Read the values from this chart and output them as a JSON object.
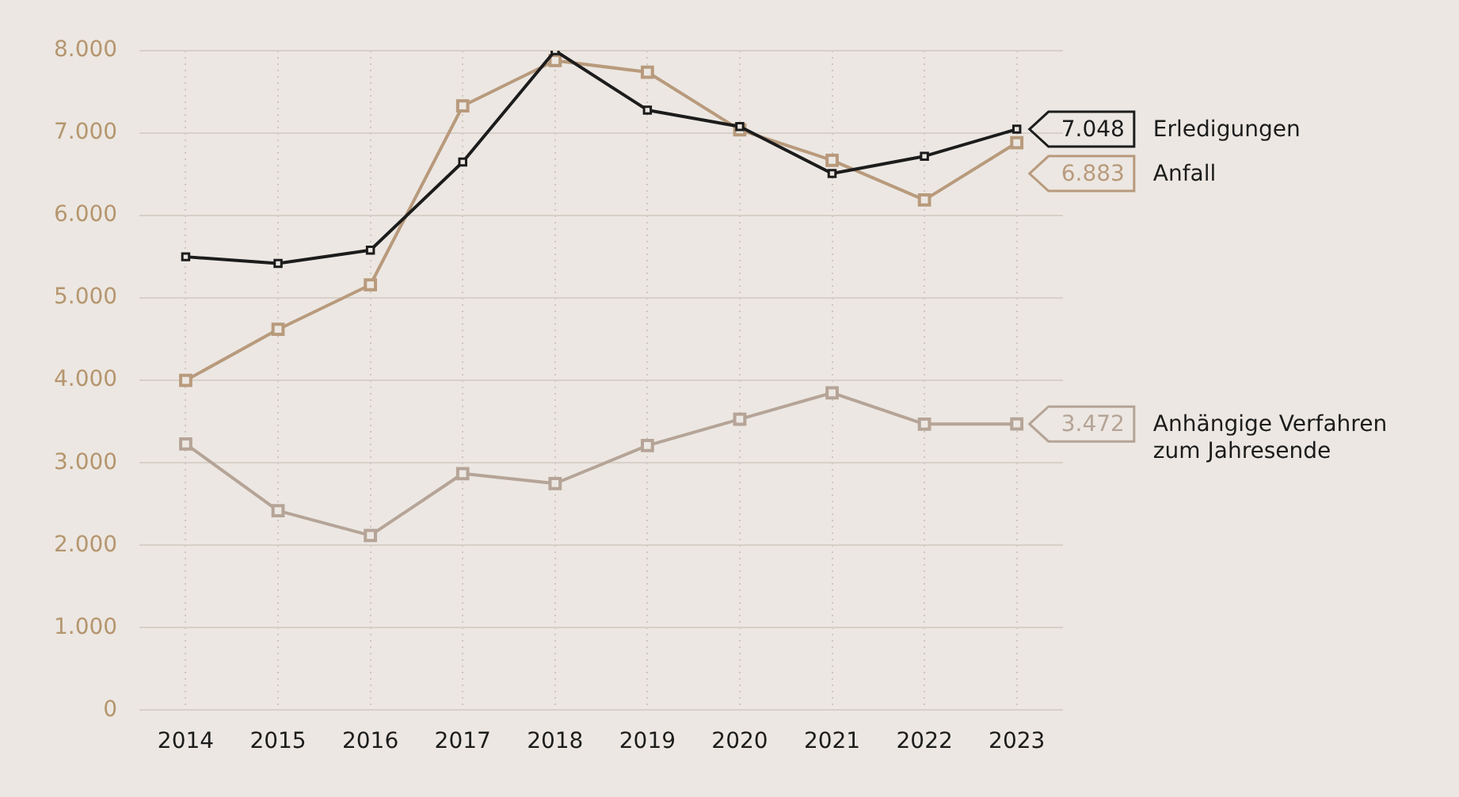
{
  "chart_data": {
    "type": "line",
    "categories": [
      "2014",
      "2015",
      "2016",
      "2017",
      "2018",
      "2019",
      "2020",
      "2021",
      "2022",
      "2023"
    ],
    "ylim": [
      0,
      8000
    ],
    "yticks": [
      0,
      {
        "value": 1000,
        "label": "1.000"
      },
      {
        "value": 2000,
        "label": "2.000"
      },
      {
        "value": 3000,
        "label": "3.000"
      },
      {
        "value": 4000,
        "label": "4.000"
      },
      {
        "value": 5000,
        "label": "5.000"
      },
      {
        "value": 6000,
        "label": "6.000"
      },
      {
        "value": 7000,
        "label": "7.000"
      },
      {
        "value": 8000,
        "label": "8.000"
      }
    ],
    "grid": true,
    "marker": "square",
    "line_style": "solid",
    "legend": "right",
    "series": [
      {
        "name": "Erledigungen",
        "color": "#1c1c1c",
        "values": [
          5500,
          5420,
          5580,
          6650,
          8000,
          7280,
          7080,
          6510,
          6720,
          7048
        ],
        "value_labels": [
          null,
          null,
          null,
          null,
          null,
          null,
          null,
          null,
          null,
          "7.048"
        ]
      },
      {
        "name": "Anfall",
        "color": "#b89a7c",
        "values": [
          4000,
          4620,
          5160,
          7330,
          7880,
          7740,
          7040,
          6670,
          6190,
          6883
        ],
        "value_labels": [
          null,
          null,
          null,
          null,
          null,
          null,
          null,
          null,
          null,
          "6.883"
        ]
      },
      {
        "name": "Anhängige Verfahren\nzum Jahresende",
        "color": "#b5a497",
        "values": [
          3230,
          2420,
          2120,
          2870,
          2750,
          3210,
          3530,
          3850,
          3470,
          3472
        ],
        "value_labels": [
          null,
          null,
          null,
          null,
          null,
          null,
          null,
          null,
          null,
          "3.472"
        ]
      }
    ]
  }
}
